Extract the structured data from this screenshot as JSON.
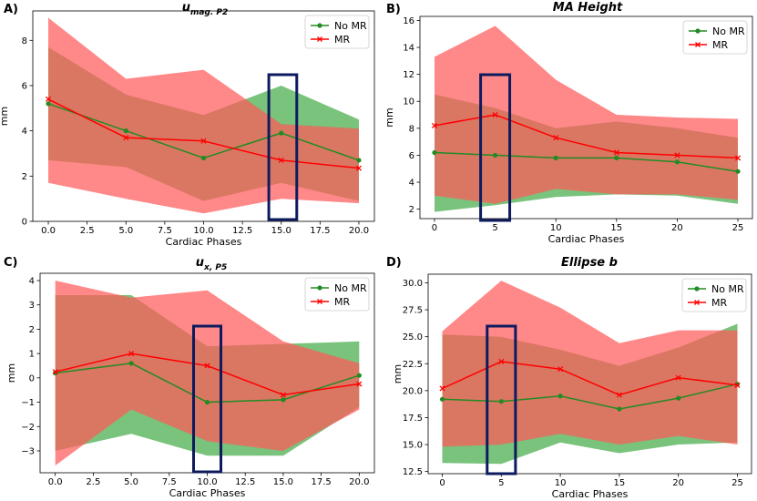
{
  "figure": {
    "colors": {
      "no_mr_line": "#228b22",
      "mr_line": "#ff0000",
      "no_mr_band": "#4caf50",
      "mr_band": "#ff5a5a",
      "highlight_box": "#0d1b5e"
    }
  },
  "chart_data": [
    {
      "type": "line",
      "panel": "A)",
      "title": "u",
      "title_sub": "mag. P2",
      "xlabel": "Cardiac Phases",
      "ylabel": "mm",
      "x": [
        0,
        5,
        10,
        15,
        20
      ],
      "xlim": [
        -1,
        21
      ],
      "ylim": [
        0,
        9.3
      ],
      "xticks": [
        0,
        2.5,
        5,
        7.5,
        10,
        12.5,
        15,
        17.5,
        20
      ],
      "xtick_labels": [
        "0.0",
        "2.5",
        "5.0",
        "7.5",
        "10.0",
        "12.5",
        "15.0",
        "17.5",
        "20.0"
      ],
      "yticks": [
        0,
        2,
        4,
        6,
        8
      ],
      "ytick_labels": [
        "0",
        "2",
        "4",
        "6",
        "8"
      ],
      "highlight_x": [
        14.2,
        16.0
      ],
      "legend_position": "upper right",
      "series": [
        {
          "name": "No MR",
          "marker": "dot",
          "values": [
            5.2,
            4.0,
            2.8,
            3.9,
            2.7
          ],
          "band_upper": [
            7.7,
            5.6,
            4.7,
            6.0,
            4.5
          ],
          "band_lower": [
            2.7,
            2.4,
            0.9,
            1.7,
            0.9
          ]
        },
        {
          "name": "MR",
          "marker": "x",
          "values": [
            5.4,
            3.7,
            3.55,
            2.7,
            2.35
          ],
          "band_upper": [
            9.0,
            6.3,
            6.7,
            4.3,
            4.1
          ],
          "band_lower": [
            1.7,
            1.0,
            0.35,
            1.0,
            0.8
          ]
        }
      ]
    },
    {
      "type": "line",
      "panel": "B)",
      "title": "MA Height",
      "title_sub": "",
      "xlabel": "Cardiac Phases",
      "ylabel": "mm",
      "x": [
        0,
        5,
        10,
        15,
        20,
        25
      ],
      "xlim": [
        -1.2,
        26.2
      ],
      "ylim": [
        1.3,
        16.3
      ],
      "xticks": [
        0,
        5,
        10,
        15,
        20,
        25
      ],
      "xtick_labels": [
        "0",
        "5",
        "10",
        "15",
        "20",
        "25"
      ],
      "yticks": [
        2,
        4,
        6,
        8,
        10,
        12,
        14,
        16
      ],
      "ytick_labels": [
        "2",
        "4",
        "6",
        "8",
        "10",
        "12",
        "14",
        "16"
      ],
      "highlight_x": [
        3.8,
        6.2
      ],
      "legend_position": "upper right",
      "series": [
        {
          "name": "No MR",
          "marker": "dot",
          "values": [
            6.2,
            6.0,
            5.8,
            5.8,
            5.5,
            4.8
          ],
          "band_upper": [
            10.5,
            9.5,
            8.0,
            8.5,
            8.0,
            7.3
          ],
          "band_lower": [
            1.8,
            2.3,
            2.9,
            3.1,
            3.0,
            2.4
          ]
        },
        {
          "name": "MR",
          "marker": "x",
          "values": [
            8.2,
            9.0,
            7.3,
            6.2,
            6.0,
            5.8
          ],
          "band_upper": [
            13.3,
            15.6,
            11.6,
            9.0,
            8.8,
            8.7
          ],
          "band_lower": [
            3.0,
            2.4,
            3.5,
            3.1,
            3.1,
            2.7
          ]
        }
      ]
    },
    {
      "type": "line",
      "panel": "C)",
      "title": "u",
      "title_sub": "x, P5",
      "xlabel": "Cardiac Phases",
      "ylabel": "mm",
      "x": [
        0,
        5,
        10,
        15,
        20
      ],
      "xlim": [
        -1,
        21
      ],
      "ylim": [
        -3.9,
        4.3
      ],
      "xticks": [
        0,
        2.5,
        5,
        7.5,
        10,
        12.5,
        15,
        17.5,
        20
      ],
      "xtick_labels": [
        "0.0",
        "2.5",
        "5.0",
        "7.5",
        "10.0",
        "12.5",
        "15.0",
        "17.5",
        "20.0"
      ],
      "yticks": [
        -3,
        -2,
        -1,
        0,
        1,
        2,
        3,
        4
      ],
      "ytick_labels": [
        "−3",
        "−2",
        "−1",
        "0",
        "1",
        "2",
        "3",
        "4"
      ],
      "highlight_x": [
        9.1,
        10.9
      ],
      "legend_position": "upper right",
      "series": [
        {
          "name": "No MR",
          "marker": "dot",
          "values": [
            0.2,
            0.6,
            -1.0,
            -0.9,
            0.1
          ],
          "band_upper": [
            3.4,
            3.4,
            1.3,
            1.4,
            1.5
          ],
          "band_lower": [
            -3.0,
            -2.3,
            -3.2,
            -3.2,
            -1.2
          ]
        },
        {
          "name": "MR",
          "marker": "x",
          "values": [
            0.25,
            1.0,
            0.5,
            -0.7,
            -0.25
          ],
          "band_upper": [
            4.0,
            3.3,
            3.6,
            1.5,
            0.6
          ],
          "band_lower": [
            -3.6,
            -1.3,
            -2.6,
            -3.0,
            -1.3
          ]
        }
      ]
    },
    {
      "type": "line",
      "panel": "D)",
      "title": "Ellipse b",
      "title_sub": "",
      "xlabel": "Cardiac Phases",
      "ylabel": "mm",
      "x": [
        0,
        5,
        10,
        15,
        20,
        25
      ],
      "xlim": [
        -1.2,
        26.2
      ],
      "ylim": [
        12.3,
        30.8
      ],
      "xticks": [
        0,
        5,
        10,
        15,
        20,
        25
      ],
      "xtick_labels": [
        "0",
        "5",
        "10",
        "15",
        "20",
        "25"
      ],
      "yticks": [
        12.5,
        15.0,
        17.5,
        20.0,
        22.5,
        25.0,
        27.5,
        30.0
      ],
      "ytick_labels": [
        "12.5",
        "15.0",
        "17.5",
        "20.0",
        "22.5",
        "25.0",
        "27.5",
        "30.0"
      ],
      "highlight_x": [
        3.8,
        6.2
      ],
      "legend_position": "upper right",
      "series": [
        {
          "name": "No MR",
          "marker": "dot",
          "values": [
            19.2,
            19.0,
            19.5,
            18.3,
            19.3,
            20.6
          ],
          "band_upper": [
            25.2,
            25.0,
            23.8,
            22.3,
            24.0,
            26.2
          ],
          "band_lower": [
            13.3,
            13.2,
            15.2,
            14.2,
            15.0,
            15.2
          ]
        },
        {
          "name": "MR",
          "marker": "x",
          "values": [
            20.2,
            22.7,
            22.0,
            19.6,
            21.2,
            20.5
          ],
          "band_upper": [
            25.5,
            30.2,
            27.7,
            24.4,
            25.6,
            25.6
          ],
          "band_lower": [
            14.8,
            15.0,
            16.0,
            15.0,
            15.8,
            15.0
          ]
        }
      ]
    }
  ]
}
